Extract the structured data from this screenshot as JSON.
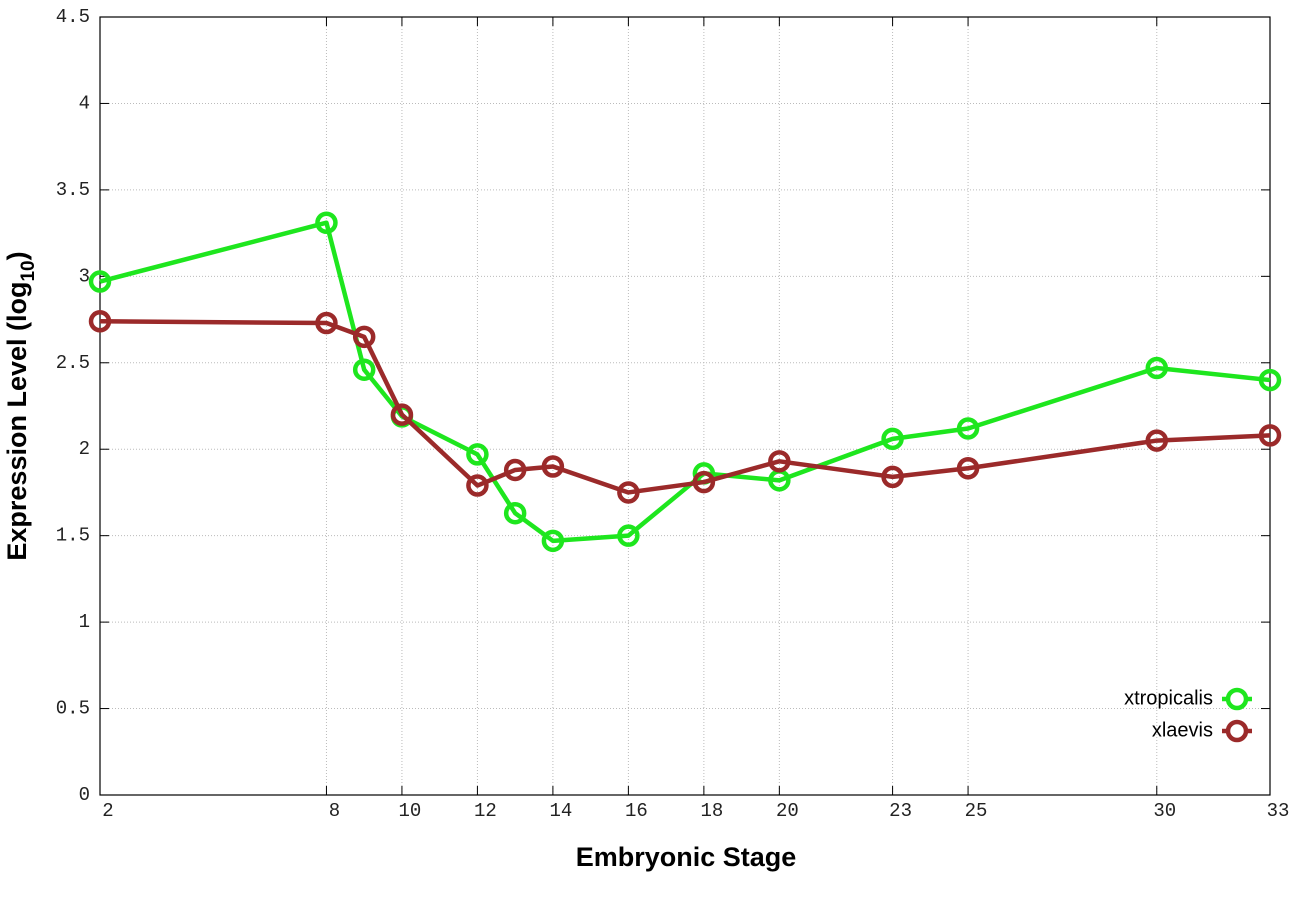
{
  "chart_data": {
    "type": "line",
    "x_label": "Embryonic Stage",
    "y_label": "Expression Level (log10)",
    "x": [
      2,
      8,
      9,
      10,
      12,
      13,
      14,
      16,
      18,
      20,
      23,
      25,
      30,
      33
    ],
    "series": [
      {
        "name": "xtropicalis",
        "color": "#1ee61e",
        "values": [
          2.97,
          3.31,
          2.46,
          2.19,
          1.97,
          1.63,
          1.47,
          1.5,
          1.86,
          1.82,
          2.06,
          2.12,
          2.47,
          2.4
        ]
      },
      {
        "name": "xlaevis",
        "color": "#9b2a2a",
        "values": [
          2.74,
          2.73,
          2.65,
          2.2,
          1.79,
          1.88,
          1.9,
          1.75,
          1.81,
          1.93,
          1.84,
          1.89,
          2.05,
          2.08
        ]
      }
    ],
    "xlim": [
      2,
      33
    ],
    "xticks": [
      2,
      8,
      10,
      12,
      14,
      16,
      18,
      20,
      23,
      25,
      30,
      33
    ],
    "ylim": [
      0,
      4.5
    ],
    "yticks": [
      0,
      0.5,
      1,
      1.5,
      2,
      2.5,
      3,
      3.5,
      4,
      4.5
    ],
    "grid": true,
    "legend": "lower right"
  }
}
